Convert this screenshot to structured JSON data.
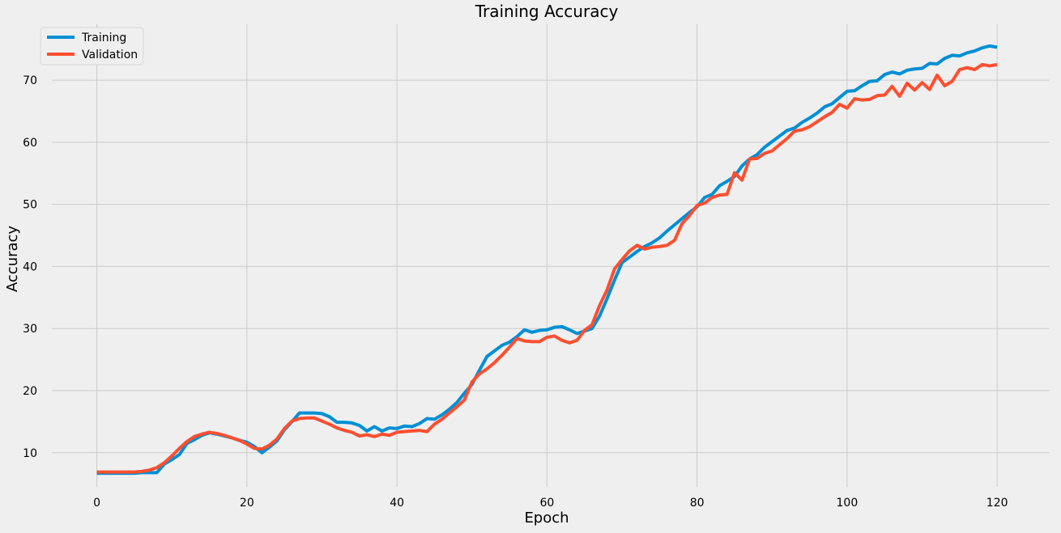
{
  "chart_data": {
    "type": "line",
    "title": "Training Accuracy",
    "xlabel": "Epoch",
    "ylabel": "Accuracy",
    "xlim": [
      -6,
      127
    ],
    "ylim": [
      4.5,
      79
    ],
    "xticks": [
      0,
      20,
      40,
      60,
      80,
      100,
      120
    ],
    "yticks": [
      10,
      20,
      30,
      40,
      50,
      60,
      70
    ],
    "grid": true,
    "legend_position": "top-left",
    "x": [
      0,
      1,
      2,
      3,
      4,
      5,
      6,
      7,
      8,
      9,
      10,
      11,
      12,
      13,
      14,
      15,
      16,
      17,
      18,
      19,
      20,
      21,
      22,
      23,
      24,
      25,
      26,
      27,
      28,
      29,
      30,
      31,
      32,
      33,
      34,
      35,
      36,
      37,
      38,
      39,
      40,
      41,
      42,
      43,
      44,
      45,
      46,
      47,
      48,
      49,
      50,
      51,
      52,
      53,
      54,
      55,
      56,
      57,
      58,
      59,
      60,
      61,
      62,
      63,
      64,
      65,
      66,
      67,
      68,
      69,
      70,
      71,
      72,
      73,
      74,
      75,
      76,
      77,
      78,
      79,
      80,
      81,
      82,
      83,
      84,
      85,
      86,
      87,
      88,
      89,
      90,
      91,
      92,
      93,
      94,
      95,
      96,
      97,
      98,
      99,
      100,
      101,
      102,
      103,
      104,
      105,
      106,
      107,
      108,
      109,
      110,
      111,
      112,
      113,
      114,
      115,
      116,
      117,
      118,
      119,
      120
    ],
    "series": [
      {
        "name": "Training",
        "color": "#008fd5",
        "values": [
          6.7,
          6.7,
          6.7,
          6.7,
          6.7,
          6.7,
          6.8,
          6.8,
          6.8,
          8.2,
          8.9,
          9.7,
          11.5,
          12.1,
          12.8,
          13.2,
          13.0,
          12.7,
          12.4,
          12.0,
          11.7,
          11.0,
          10.0,
          10.9,
          11.9,
          13.7,
          15.0,
          16.4,
          16.4,
          16.4,
          16.3,
          15.8,
          14.9,
          14.9,
          14.8,
          14.4,
          13.5,
          14.2,
          13.5,
          14.0,
          13.9,
          14.3,
          14.2,
          14.7,
          15.5,
          15.4,
          16.1,
          17.0,
          18.1,
          19.6,
          21.0,
          23.3,
          25.5,
          26.4,
          27.3,
          27.8,
          28.7,
          29.8,
          29.4,
          29.7,
          29.8,
          30.2,
          30.3,
          29.8,
          29.2,
          29.6,
          30.0,
          32.0,
          34.8,
          37.8,
          40.6,
          41.5,
          42.4,
          43.2,
          43.8,
          44.6,
          45.7,
          46.7,
          47.7,
          48.7,
          49.6,
          51.1,
          51.6,
          53.0,
          53.7,
          54.5,
          56.2,
          57.3,
          58.0,
          59.2,
          60.1,
          61.0,
          61.9,
          62.3,
          63.2,
          63.9,
          64.7,
          65.7,
          66.2,
          67.2,
          68.2,
          68.3,
          69.1,
          69.8,
          69.9,
          70.9,
          71.3,
          71.0,
          71.6,
          71.8,
          71.9,
          72.7,
          72.6,
          73.5,
          74.0,
          73.9,
          74.4,
          74.7,
          75.2,
          75.5,
          75.3
        ]
      },
      {
        "name": "Validation",
        "color": "#fc4f30",
        "values": [
          6.9,
          6.9,
          6.9,
          6.9,
          6.9,
          6.9,
          7.0,
          7.2,
          7.6,
          8.4,
          9.5,
          10.7,
          11.8,
          12.6,
          13.0,
          13.3,
          13.1,
          12.8,
          12.4,
          12.0,
          11.4,
          10.7,
          10.6,
          11.2,
          12.2,
          13.9,
          15.1,
          15.5,
          15.6,
          15.6,
          15.1,
          14.6,
          14.0,
          13.6,
          13.3,
          12.7,
          12.9,
          12.6,
          13.0,
          12.8,
          13.3,
          13.4,
          13.5,
          13.6,
          13.4,
          14.6,
          15.4,
          16.4,
          17.4,
          18.5,
          21.4,
          22.7,
          23.5,
          24.5,
          25.7,
          27.0,
          28.4,
          28.0,
          27.9,
          27.9,
          28.6,
          28.8,
          28.1,
          27.7,
          28.1,
          29.7,
          30.6,
          33.7,
          36.2,
          39.6,
          41.1,
          42.5,
          43.4,
          42.8,
          43.1,
          43.2,
          43.4,
          44.2,
          46.9,
          48.2,
          49.8,
          50.2,
          51.1,
          51.5,
          51.6,
          55.1,
          53.9,
          57.3,
          57.4,
          58.2,
          58.6,
          59.6,
          60.6,
          61.8,
          62.0,
          62.5,
          63.3,
          64.1,
          64.8,
          66.1,
          65.5,
          67.0,
          66.8,
          66.9,
          67.5,
          67.6,
          69.0,
          67.4,
          69.5,
          68.4,
          69.6,
          68.5,
          70.8,
          69.1,
          69.8,
          71.7,
          72.0,
          71.7,
          72.5,
          72.3,
          72.5
        ]
      }
    ]
  }
}
